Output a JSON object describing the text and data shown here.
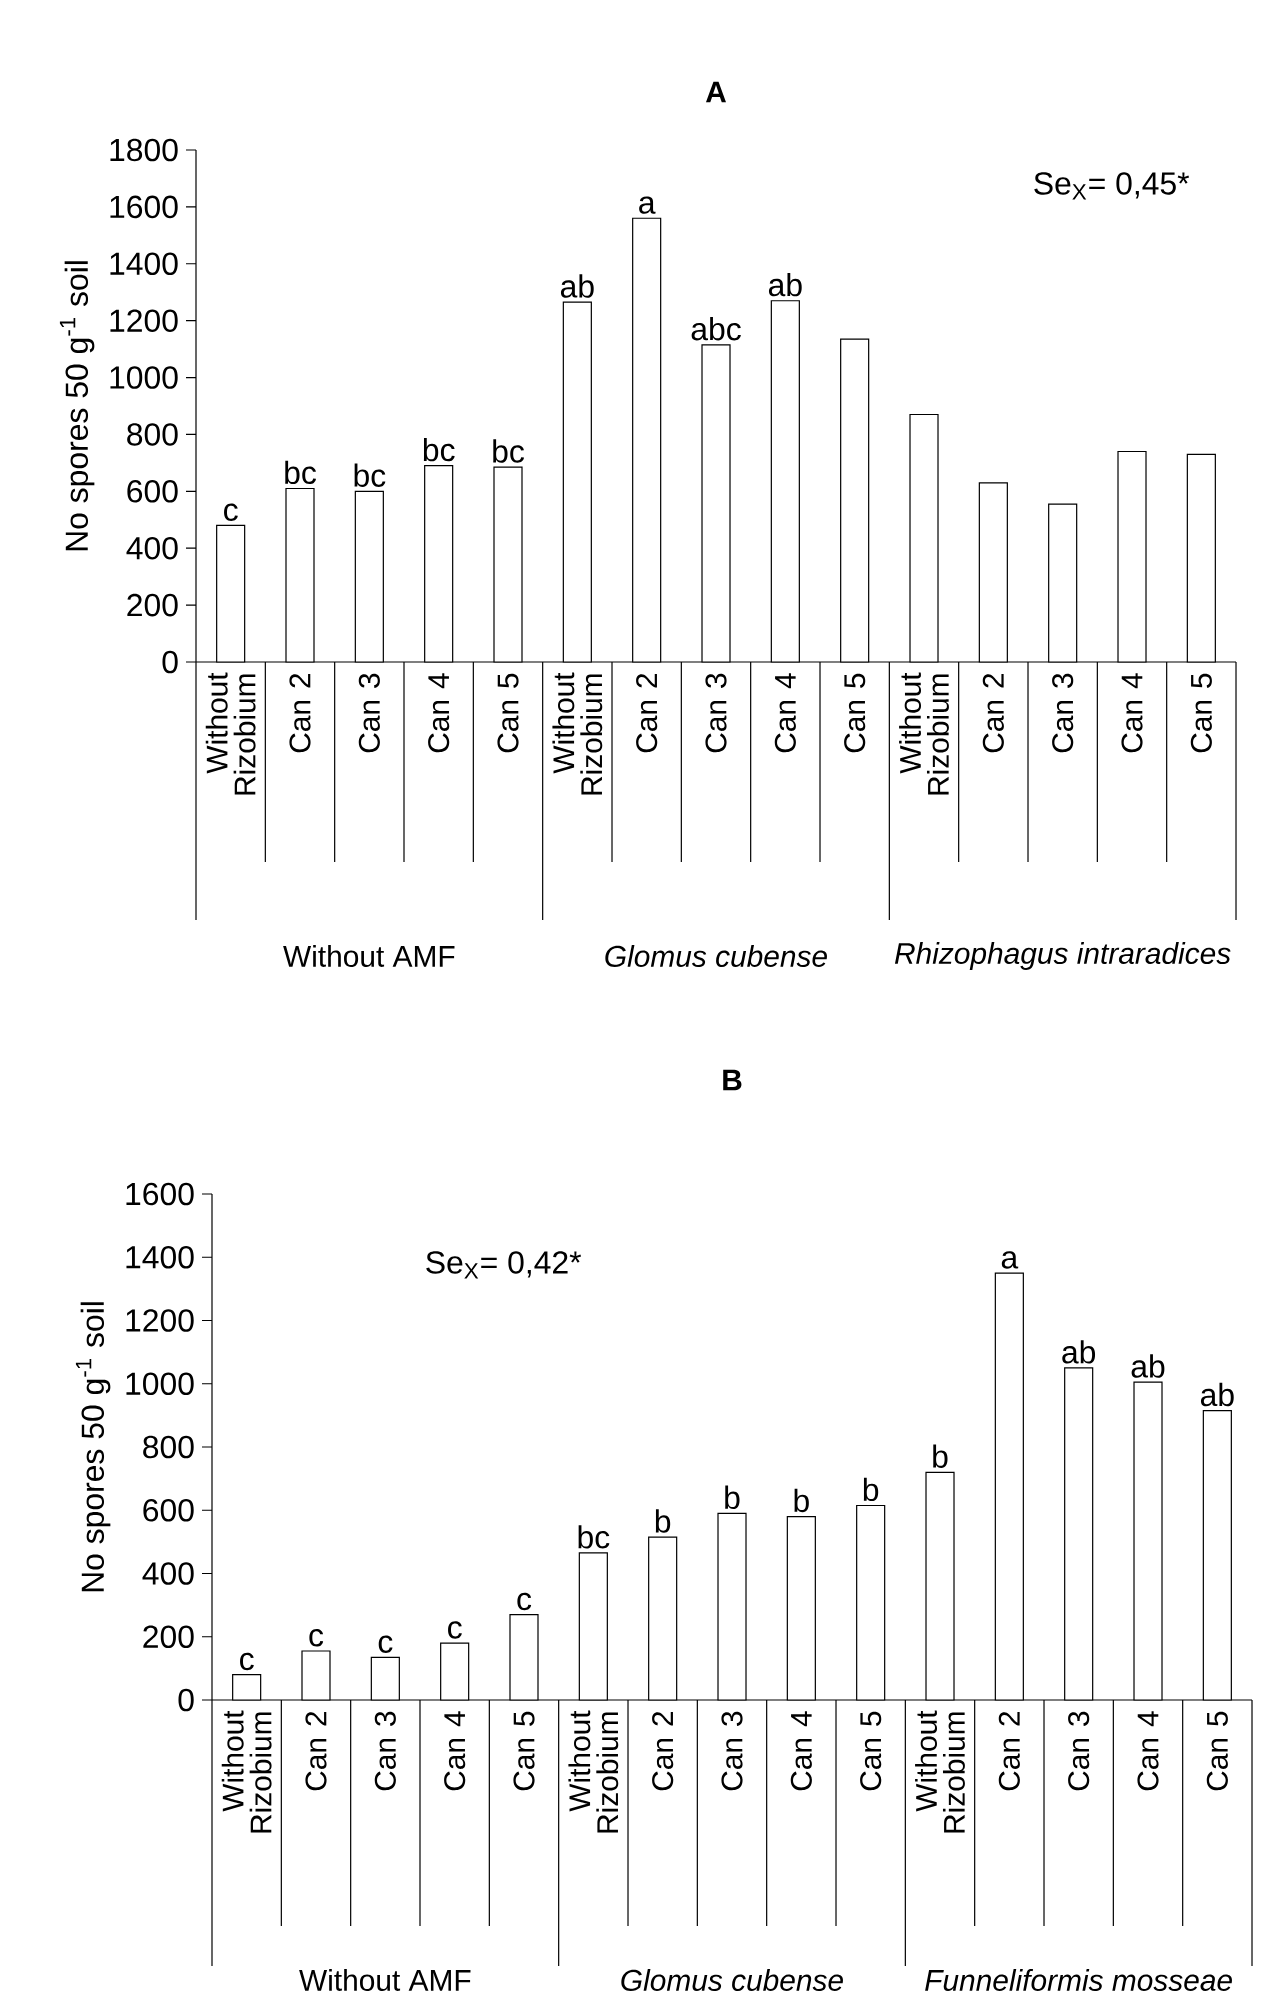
{
  "chart_data": [
    {
      "type": "bar",
      "title": "A",
      "ylabel": "No spores  50 g$^{-1}$ soil",
      "categories": [
        "Without Rizobium",
        "Can 2",
        "Can 3",
        "Can 4",
        "Can 5",
        "Without Rizobium",
        "Can 2",
        "Can 3",
        "Can 4",
        "Can 5",
        "Without Rizobium",
        "Can 2",
        "Can 3",
        "Can 4",
        "Can 5"
      ],
      "values": [
        480,
        610,
        600,
        690,
        685,
        1265,
        1560,
        1115,
        1270,
        1135,
        870,
        630,
        555,
        740,
        730
      ],
      "value_labels": [
        "c",
        "bc",
        "bc",
        "bc",
        "bc",
        "ab",
        "a",
        "abc",
        "ab",
        null,
        null,
        null,
        null,
        null,
        null
      ],
      "color": "#ffffff",
      "ylim": [
        0,
        1800
      ],
      "yticks": [
        0,
        200,
        400,
        600,
        800,
        1000,
        1200,
        1400,
        1600,
        1800
      ],
      "annotations": [
        "Se$_{X}$= 0,45*",
        "Without AMF",
        "Glomus cubense",
        "Rhizophagus intraradices"
      ]
    },
    {
      "type": "bar",
      "title": "B",
      "ylabel": "No spores  50 g$^{-1}$ soil",
      "categories": [
        "Without Rizobium",
        "Can 2",
        "Can 3",
        "Can 4",
        "Can 5",
        "Without Rizobium",
        "Can 2",
        "Can 3",
        "Can 4",
        "Can 5",
        "Without Rizobium",
        "Can 2",
        "Can 3",
        "Can 4",
        "Can 5"
      ],
      "values": [
        80,
        155,
        135,
        180,
        270,
        465,
        515,
        590,
        580,
        615,
        720,
        1350,
        1050,
        1005,
        915
      ],
      "value_labels": [
        "c",
        "c",
        "c",
        "c",
        "c",
        "bc",
        "b",
        "b",
        "b",
        "b",
        "b",
        "a",
        "ab",
        "ab",
        "ab"
      ],
      "color": "#ffffff",
      "ylim": [
        0,
        1600
      ],
      "yticks": [
        0,
        200,
        400,
        600,
        800,
        1000,
        1200,
        1400,
        1600
      ],
      "annotations": [
        "Se$_{X}$= 0,42*",
        "Without AMF",
        "Glomus cubense",
        "Funneliformis mosseae"
      ]
    }
  ]
}
